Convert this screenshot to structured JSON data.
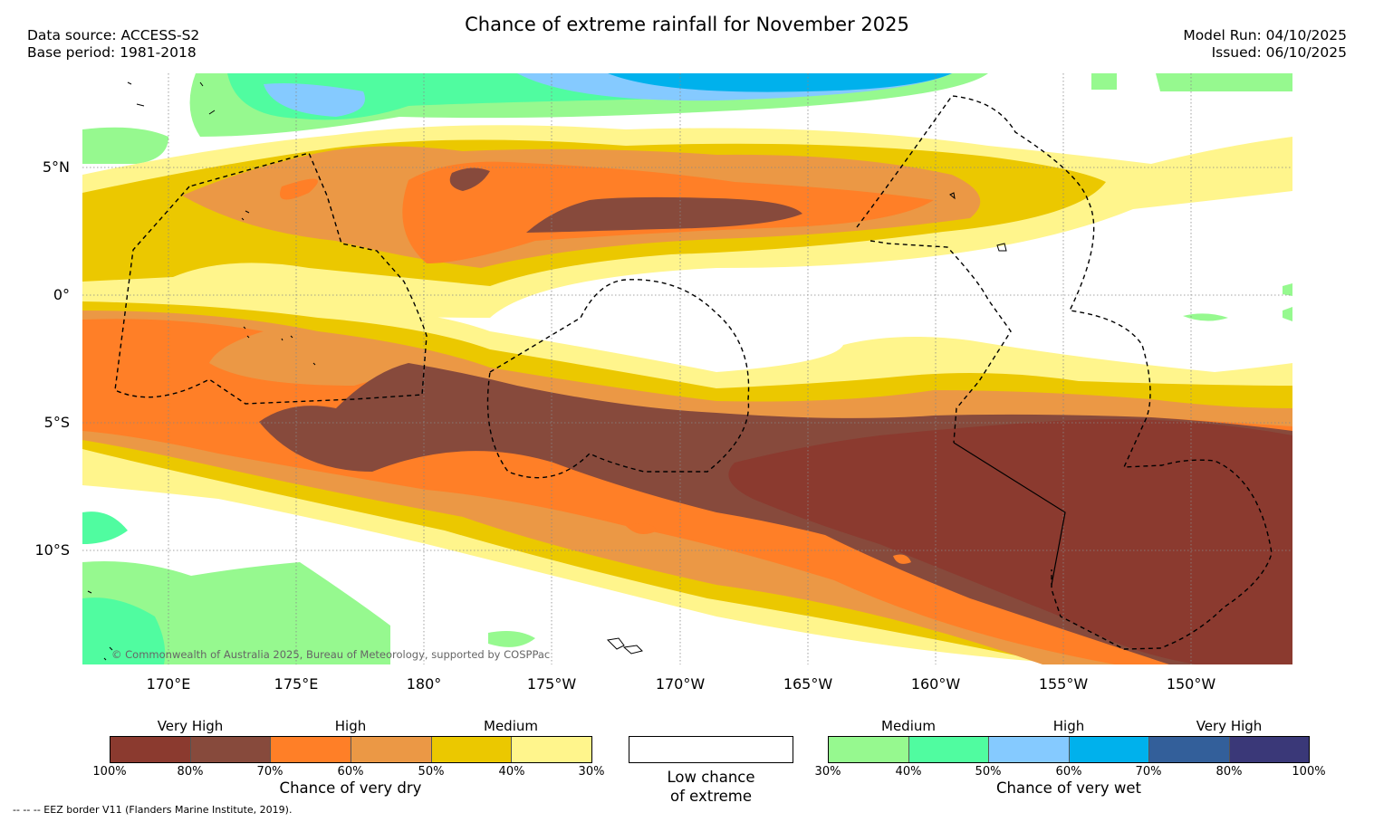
{
  "title": "Chance of extreme rainfall for November 2025",
  "meta_left": {
    "data_source": "Data source: ACCESS-S2",
    "base_period": "Base period: 1981-2018"
  },
  "meta_right": {
    "model_run": "Model Run: 04/10/2025",
    "issued": "Issued: 06/10/2025"
  },
  "map": {
    "lat_labels": [
      "5°N",
      "0°",
      "5°S",
      "10°S"
    ],
    "lon_labels": [
      "170°E",
      "175°E",
      "180°",
      "175°W",
      "170°W",
      "165°W",
      "160°W",
      "155°W",
      "150°W"
    ],
    "copyright": "© Commonwealth of Australia 2025, Bureau of Meteorology, supported by COSPPac",
    "colors": {
      "dry_100_80": "#8b3a2f",
      "dry_80_70": "#874a3c",
      "dry_70_60": "#ff7f27",
      "dry_60_50": "#eb9845",
      "dry_50_40": "#ebc800",
      "dry_40_30": "#fff58c",
      "low": "#ffffff",
      "wet_30_40": "#96f98f",
      "wet_40_50": "#50fca0",
      "wet_50_60": "#85caff",
      "wet_60_70": "#00b1ec",
      "wet_70_80": "#335f9a",
      "wet_80_100": "#3a3878"
    }
  },
  "legend": {
    "dry": {
      "titles": [
        "Very High",
        "High",
        "Medium"
      ],
      "ticks": [
        "100%",
        "80%",
        "70%",
        "60%",
        "50%",
        "40%",
        "30%"
      ],
      "label": "Chance of very dry",
      "colors": [
        "#8b3a2f",
        "#874a3c",
        "#ff7f27",
        "#eb9845",
        "#ebc800",
        "#fff58c"
      ]
    },
    "low": {
      "label_line1": "Low chance",
      "label_line2": "of extreme",
      "color": "#ffffff"
    },
    "wet": {
      "titles": [
        "Medium",
        "High",
        "Very High"
      ],
      "ticks": [
        "30%",
        "40%",
        "50%",
        "60%",
        "70%",
        "80%",
        "100%"
      ],
      "label": "Chance of very wet",
      "colors": [
        "#96f98f",
        "#50fca0",
        "#85caff",
        "#00b1ec",
        "#335f9a",
        "#3a3878"
      ]
    }
  },
  "footnote": "--  --  -- EEZ border V11 (Flanders Marine Institute, 2019)."
}
